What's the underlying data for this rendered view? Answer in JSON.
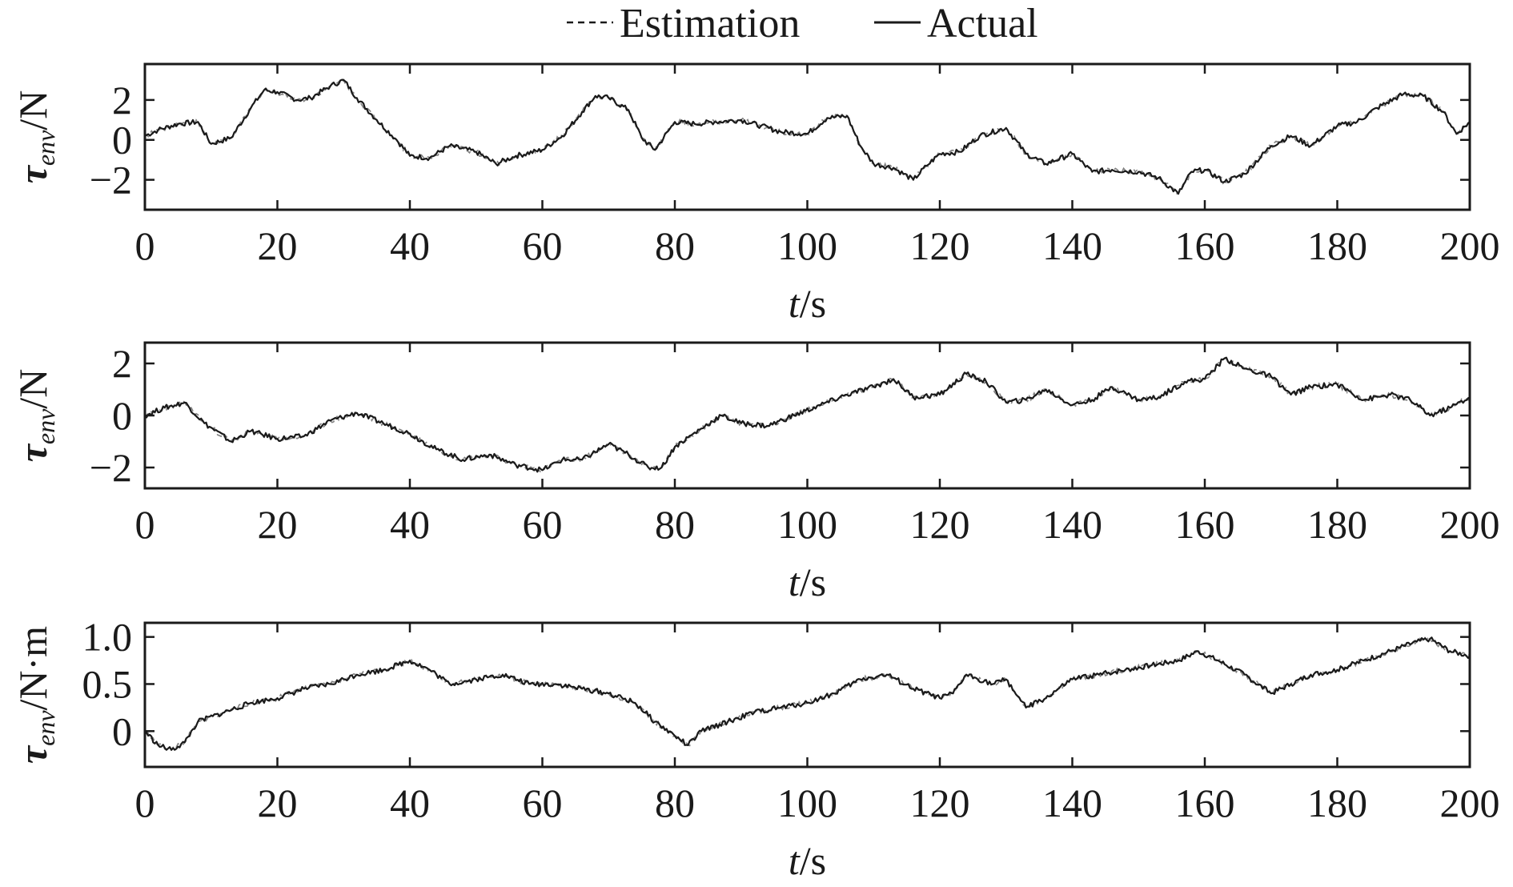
{
  "legend": [
    {
      "label": "Estimation",
      "style": "dashed"
    },
    {
      "label": "Actual",
      "style": "solid"
    }
  ],
  "chart_data": [
    {
      "type": "line",
      "xlabel": "t/s",
      "xlabel_parts": {
        "var": "t",
        "unit": "/s"
      },
      "ylabel": "τenv/N",
      "ylabel_parts": {
        "sym": "τ",
        "sub": "env",
        "unit": "/N"
      },
      "xlim": [
        0,
        200
      ],
      "ylim": [
        -3.5,
        3.8
      ],
      "xticks": [
        0,
        20,
        40,
        60,
        80,
        100,
        120,
        140,
        160,
        180,
        200
      ],
      "yticks": [
        -2,
        0,
        2
      ],
      "ytick_labels": [
        "−2",
        "0",
        "2"
      ],
      "series": [
        {
          "name": "Actual",
          "style": "solid",
          "x": [
            0,
            2,
            5,
            8,
            10,
            13,
            16,
            18,
            20,
            23,
            25,
            28,
            30,
            32,
            35,
            38,
            40,
            43,
            46,
            50,
            53,
            56,
            60,
            63,
            66,
            68,
            70,
            73,
            75,
            77,
            80,
            83,
            86,
            90,
            93,
            96,
            100,
            103,
            106,
            108,
            110,
            113,
            116,
            118,
            120,
            123,
            126,
            130,
            133,
            136,
            140,
            143,
            146,
            150,
            153,
            156,
            158,
            160,
            163,
            166,
            170,
            173,
            176,
            180,
            183,
            186,
            190,
            193,
            196,
            198,
            200
          ],
          "y": [
            0.2,
            0.5,
            0.8,
            0.9,
            -0.2,
            0.1,
            1.6,
            2.5,
            2.4,
            2.0,
            2.1,
            2.7,
            3.0,
            2.1,
            1.0,
            0.0,
            -0.8,
            -0.9,
            -0.3,
            -0.6,
            -1.2,
            -0.8,
            -0.5,
            0.2,
            1.4,
            2.2,
            2.1,
            1.5,
            0.1,
            -0.5,
            0.9,
            0.8,
            0.9,
            1.0,
            0.7,
            0.4,
            0.3,
            1.1,
            1.2,
            -0.3,
            -1.2,
            -1.4,
            -2.0,
            -1.3,
            -0.7,
            -0.6,
            0.2,
            0.6,
            -0.7,
            -1.2,
            -0.7,
            -1.6,
            -1.5,
            -1.6,
            -1.9,
            -2.7,
            -1.6,
            -1.5,
            -2.1,
            -1.7,
            -0.3,
            0.2,
            -0.3,
            0.7,
            0.9,
            1.6,
            2.3,
            2.2,
            1.4,
            0.3,
            0.9
          ]
        },
        {
          "name": "Estimation",
          "style": "dashed",
          "x": [
            0,
            2,
            5,
            8,
            10,
            13,
            16,
            18,
            20,
            23,
            25,
            28,
            30,
            32,
            35,
            38,
            40,
            43,
            46,
            50,
            53,
            56,
            60,
            63,
            66,
            68,
            70,
            73,
            75,
            77,
            80,
            83,
            86,
            90,
            93,
            96,
            100,
            103,
            106,
            108,
            110,
            113,
            116,
            118,
            120,
            123,
            126,
            130,
            133,
            136,
            140,
            143,
            146,
            150,
            153,
            156,
            158,
            160,
            163,
            166,
            170,
            173,
            176,
            180,
            183,
            186,
            190,
            193,
            196,
            198,
            200
          ],
          "y": [
            0.2,
            0.5,
            0.8,
            0.9,
            -0.2,
            0.1,
            1.6,
            2.5,
            2.4,
            2.0,
            2.1,
            2.7,
            3.0,
            2.1,
            1.0,
            0.0,
            -0.8,
            -0.9,
            -0.3,
            -0.6,
            -1.2,
            -0.8,
            -0.5,
            0.2,
            1.4,
            2.2,
            2.1,
            1.5,
            0.1,
            -0.5,
            0.9,
            0.8,
            0.9,
            1.0,
            0.7,
            0.4,
            0.3,
            1.1,
            1.2,
            -0.3,
            -1.2,
            -1.4,
            -2.0,
            -1.3,
            -0.7,
            -0.6,
            0.2,
            0.6,
            -0.7,
            -1.2,
            -0.7,
            -1.6,
            -1.5,
            -1.6,
            -1.9,
            -2.7,
            -1.6,
            -1.5,
            -2.1,
            -1.7,
            -0.3,
            0.2,
            -0.3,
            0.7,
            0.9,
            1.6,
            2.3,
            2.2,
            1.4,
            0.3,
            0.9
          ]
        }
      ]
    },
    {
      "type": "line",
      "xlabel": "t/s",
      "xlabel_parts": {
        "var": "t",
        "unit": "/s"
      },
      "ylabel": "τenv/N",
      "ylabel_parts": {
        "sym": "τ",
        "sub": "env",
        "unit": "/N"
      },
      "xlim": [
        0,
        200
      ],
      "ylim": [
        -2.8,
        2.8
      ],
      "xticks": [
        0,
        20,
        40,
        60,
        80,
        100,
        120,
        140,
        160,
        180,
        200
      ],
      "yticks": [
        -2,
        0,
        2
      ],
      "ytick_labels": [
        "−2",
        "0",
        "2"
      ],
      "series": [
        {
          "name": "Actual",
          "style": "solid",
          "x": [
            0,
            3,
            6,
            9,
            13,
            16,
            20,
            24,
            28,
            32,
            36,
            40,
            44,
            48,
            52,
            56,
            60,
            63,
            66,
            70,
            73,
            76,
            78,
            80,
            84,
            87,
            90,
            94,
            98,
            102,
            106,
            110,
            113,
            116,
            120,
            124,
            127,
            130,
            133,
            136,
            140,
            143,
            146,
            150,
            153,
            157,
            160,
            163,
            166,
            170,
            173,
            176,
            180,
            184,
            188,
            191,
            194,
            197,
            200
          ],
          "y": [
            0.0,
            0.3,
            0.5,
            -0.3,
            -1.0,
            -0.6,
            -0.9,
            -0.8,
            -0.2,
            0.1,
            -0.3,
            -0.7,
            -1.3,
            -1.7,
            -1.5,
            -1.9,
            -2.1,
            -1.7,
            -1.7,
            -1.1,
            -1.5,
            -2.0,
            -2.0,
            -1.2,
            -0.5,
            0.0,
            -0.3,
            -0.4,
            0.0,
            0.4,
            0.8,
            1.1,
            1.4,
            0.7,
            0.8,
            1.6,
            1.3,
            0.5,
            0.6,
            1.0,
            0.4,
            0.6,
            1.1,
            0.6,
            0.7,
            1.3,
            1.4,
            2.2,
            1.8,
            1.5,
            0.8,
            1.1,
            1.2,
            0.6,
            0.8,
            0.6,
            0.0,
            0.3,
            0.7
          ]
        },
        {
          "name": "Estimation",
          "style": "dashed",
          "x": [
            0,
            3,
            6,
            9,
            13,
            16,
            20,
            24,
            28,
            32,
            36,
            40,
            44,
            48,
            52,
            56,
            60,
            63,
            66,
            70,
            73,
            76,
            78,
            80,
            84,
            87,
            90,
            94,
            98,
            102,
            106,
            110,
            113,
            116,
            120,
            124,
            127,
            130,
            133,
            136,
            140,
            143,
            146,
            150,
            153,
            157,
            160,
            163,
            166,
            170,
            173,
            176,
            180,
            184,
            188,
            191,
            194,
            197,
            200
          ],
          "y": [
            0.0,
            0.3,
            0.5,
            -0.3,
            -1.0,
            -0.6,
            -0.9,
            -0.8,
            -0.2,
            0.1,
            -0.3,
            -0.7,
            -1.3,
            -1.7,
            -1.5,
            -1.9,
            -2.1,
            -1.7,
            -1.7,
            -1.1,
            -1.5,
            -2.0,
            -2.0,
            -1.2,
            -0.5,
            0.0,
            -0.3,
            -0.4,
            0.0,
            0.4,
            0.8,
            1.1,
            1.4,
            0.7,
            0.8,
            1.6,
            1.3,
            0.5,
            0.6,
            1.0,
            0.4,
            0.6,
            1.1,
            0.6,
            0.7,
            1.3,
            1.4,
            2.2,
            1.8,
            1.5,
            0.8,
            1.1,
            1.2,
            0.6,
            0.8,
            0.6,
            0.0,
            0.3,
            0.7
          ]
        }
      ]
    },
    {
      "type": "line",
      "xlabel": "t/s",
      "xlabel_parts": {
        "var": "t",
        "unit": "/s"
      },
      "ylabel": "τenv/N·m",
      "ylabel_parts": {
        "sym": "τ",
        "sub": "env",
        "unit": "/N·m"
      },
      "xlim": [
        0,
        200
      ],
      "ylim": [
        -0.38,
        1.15
      ],
      "xticks": [
        0,
        20,
        40,
        60,
        80,
        100,
        120,
        140,
        160,
        180,
        200
      ],
      "yticks": [
        0,
        0.5,
        1.0
      ],
      "ytick_labels": [
        "0",
        "0.5",
        "1.0"
      ],
      "series": [
        {
          "name": "Actual",
          "style": "solid",
          "x": [
            0,
            2,
            4,
            6,
            8,
            12,
            16,
            20,
            24,
            28,
            32,
            36,
            40,
            43,
            46,
            50,
            54,
            58,
            62,
            66,
            70,
            74,
            77,
            80,
            82,
            84,
            88,
            92,
            96,
            100,
            104,
            108,
            112,
            116,
            120,
            122,
            124,
            128,
            130,
            133,
            136,
            140,
            144,
            148,
            152,
            156,
            159,
            162,
            166,
            170,
            173,
            176,
            180,
            184,
            188,
            192,
            194,
            197,
            200
          ],
          "y": [
            0.0,
            -0.15,
            -0.2,
            -0.12,
            0.1,
            0.2,
            0.3,
            0.35,
            0.45,
            0.5,
            0.6,
            0.65,
            0.75,
            0.65,
            0.5,
            0.55,
            0.6,
            0.5,
            0.5,
            0.45,
            0.4,
            0.3,
            0.1,
            -0.05,
            -0.15,
            0.0,
            0.1,
            0.2,
            0.25,
            0.3,
            0.4,
            0.55,
            0.6,
            0.45,
            0.35,
            0.4,
            0.6,
            0.5,
            0.55,
            0.25,
            0.35,
            0.55,
            0.6,
            0.65,
            0.7,
            0.75,
            0.85,
            0.75,
            0.6,
            0.4,
            0.5,
            0.6,
            0.65,
            0.75,
            0.85,
            0.95,
            0.98,
            0.85,
            0.8
          ]
        },
        {
          "name": "Estimation",
          "style": "dashed",
          "x": [
            0,
            2,
            4,
            6,
            8,
            12,
            16,
            20,
            24,
            28,
            32,
            36,
            40,
            43,
            46,
            50,
            54,
            58,
            62,
            66,
            70,
            74,
            77,
            80,
            82,
            84,
            88,
            92,
            96,
            100,
            104,
            108,
            112,
            116,
            120,
            122,
            124,
            128,
            130,
            133,
            136,
            140,
            144,
            148,
            152,
            156,
            159,
            162,
            166,
            170,
            173,
            176,
            180,
            184,
            188,
            192,
            194,
            197,
            200
          ],
          "y": [
            0.0,
            -0.15,
            -0.2,
            -0.12,
            0.1,
            0.2,
            0.3,
            0.35,
            0.45,
            0.5,
            0.6,
            0.65,
            0.75,
            0.65,
            0.5,
            0.55,
            0.6,
            0.5,
            0.5,
            0.45,
            0.4,
            0.3,
            0.1,
            -0.05,
            -0.15,
            0.0,
            0.1,
            0.2,
            0.25,
            0.3,
            0.4,
            0.55,
            0.6,
            0.45,
            0.35,
            0.4,
            0.6,
            0.5,
            0.55,
            0.25,
            0.35,
            0.55,
            0.6,
            0.65,
            0.7,
            0.75,
            0.85,
            0.75,
            0.6,
            0.4,
            0.5,
            0.6,
            0.65,
            0.75,
            0.85,
            0.95,
            0.98,
            0.85,
            0.8
          ]
        }
      ]
    }
  ]
}
